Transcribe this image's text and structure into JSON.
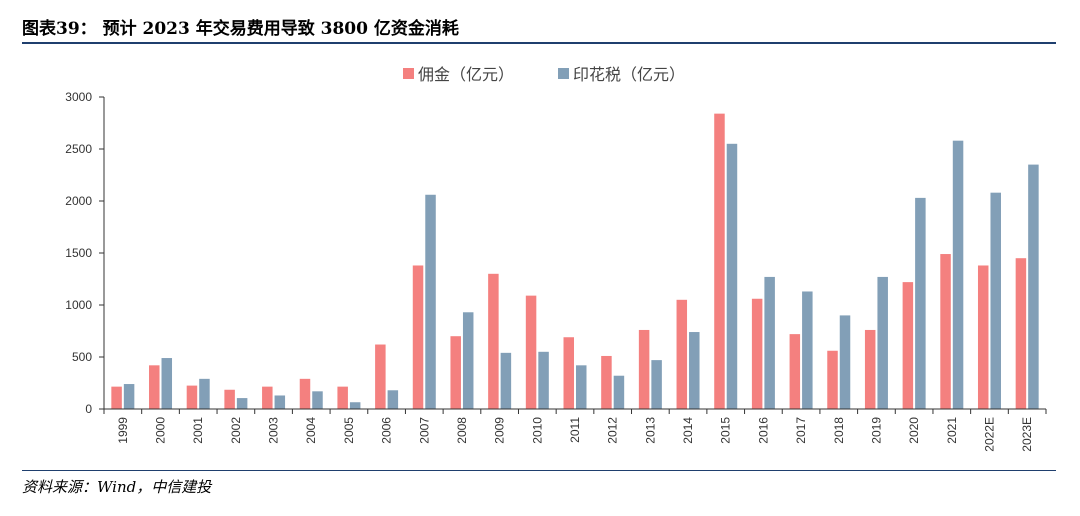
{
  "title": "图表39： 预计 2023 年交易费用导致 3800 亿资金消耗",
  "source": "资料来源：Wind，中信建投",
  "colors": {
    "commission": "#f4807f",
    "stamp_duty": "#829fb7",
    "axis": "#333333",
    "rule": "#1f3f6e"
  },
  "chart_data": {
    "type": "bar",
    "title": "",
    "xlabel": "",
    "ylabel": "",
    "ylim": [
      0,
      3000
    ],
    "yticks": [
      0,
      500,
      1000,
      1500,
      2000,
      2500,
      3000
    ],
    "categories": [
      "1999",
      "2000",
      "2001",
      "2002",
      "2003",
      "2004",
      "2005",
      "2006",
      "2007",
      "2008",
      "2009",
      "2010",
      "2011",
      "2012",
      "2013",
      "2014",
      "2015",
      "2016",
      "2017",
      "2018",
      "2019",
      "2020",
      "2021",
      "2022E",
      "2023E"
    ],
    "series": [
      {
        "name": "佣金（亿元）",
        "color": "#f4807f",
        "values": [
          215,
          420,
          225,
          185,
          215,
          290,
          215,
          620,
          1380,
          700,
          1300,
          1090,
          690,
          510,
          760,
          1050,
          2840,
          1060,
          720,
          560,
          760,
          1220,
          1490,
          1380,
          1450
        ]
      },
      {
        "name": "印花税（亿元）",
        "color": "#829fb7",
        "values": [
          240,
          490,
          290,
          105,
          130,
          170,
          65,
          180,
          2060,
          930,
          540,
          550,
          420,
          320,
          470,
          740,
          2550,
          1270,
          1130,
          900,
          1270,
          2030,
          2580,
          2080,
          2350
        ]
      }
    ],
    "legend_position": "top-center"
  }
}
